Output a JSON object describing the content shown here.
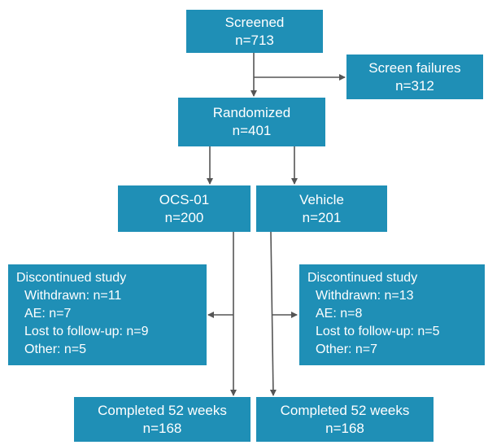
{
  "flowchart": {
    "screened": {
      "title": "Screened",
      "count": "n=713"
    },
    "screen_failures": {
      "title": "Screen failures",
      "count": "n=312"
    },
    "randomized": {
      "title": "Randomized",
      "count": "n=401"
    },
    "ocs": {
      "title": "OCS-01",
      "count": "n=200"
    },
    "vehicle": {
      "title": "Vehicle",
      "count": "n=201"
    },
    "discontinued_left": {
      "title": "Discontinued study",
      "items": [
        "Withdrawn: n=11",
        "AE: n=7",
        "Lost to follow-up: n=9",
        "Other: n=5"
      ]
    },
    "discontinued_right": {
      "title": "Discontinued study",
      "items": [
        "Withdrawn: n=13",
        "AE: n=8",
        "Lost to follow-up: n=5",
        "Other: n=7"
      ]
    },
    "completed_left": {
      "title": "Completed 52 weeks",
      "count": "n=168"
    },
    "completed_right": {
      "title": "Completed 52 weeks",
      "count": "n=168"
    }
  },
  "colors": {
    "box_fill": "#1f8fb6",
    "box_text": "#ffffff",
    "arrow": "#555555"
  }
}
